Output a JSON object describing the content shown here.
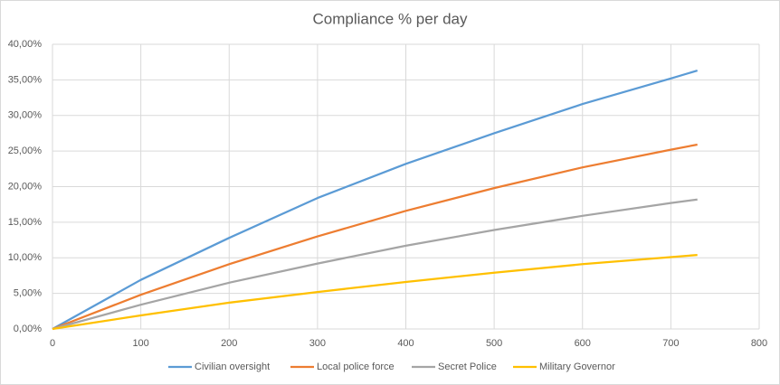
{
  "chart_data": {
    "type": "line",
    "title": "Compliance % per day",
    "x": [
      0,
      100,
      200,
      300,
      400,
      500,
      600,
      700,
      730
    ],
    "series": [
      {
        "name": "Civilian oversight",
        "color": "#5b9bd5",
        "values": [
          0,
          6.9,
          12.8,
          18.4,
          23.2,
          27.5,
          31.6,
          35.2,
          36.3
        ]
      },
      {
        "name": "Local police force",
        "color": "#ed7d31",
        "values": [
          0,
          4.8,
          9.1,
          13.0,
          16.6,
          19.8,
          22.7,
          25.2,
          25.9
        ]
      },
      {
        "name": "Secret Police",
        "color": "#a5a5a5",
        "values": [
          0,
          3.4,
          6.5,
          9.2,
          11.7,
          13.9,
          15.9,
          17.7,
          18.2
        ]
      },
      {
        "name": "Military Governor",
        "color": "#ffc000",
        "values": [
          0,
          1.9,
          3.7,
          5.2,
          6.6,
          7.9,
          9.1,
          10.1,
          10.4
        ]
      }
    ],
    "xlim": [
      0,
      800
    ],
    "xticks": [
      0,
      100,
      200,
      300,
      400,
      500,
      600,
      700,
      800
    ],
    "ylim": [
      0,
      40
    ],
    "yticks": [
      {
        "value": 0,
        "label": "0,00%"
      },
      {
        "value": 5,
        "label": "5,00%"
      },
      {
        "value": 10,
        "label": "10,00%"
      },
      {
        "value": 15,
        "label": "15,00%"
      },
      {
        "value": 20,
        "label": "20,00%"
      },
      {
        "value": 25,
        "label": "25,00%"
      },
      {
        "value": 30,
        "label": "30,00%"
      },
      {
        "value": 35,
        "label": "35,00%"
      },
      {
        "value": 40,
        "label": "40,00%"
      }
    ],
    "grid": true,
    "legend": "bottom"
  }
}
